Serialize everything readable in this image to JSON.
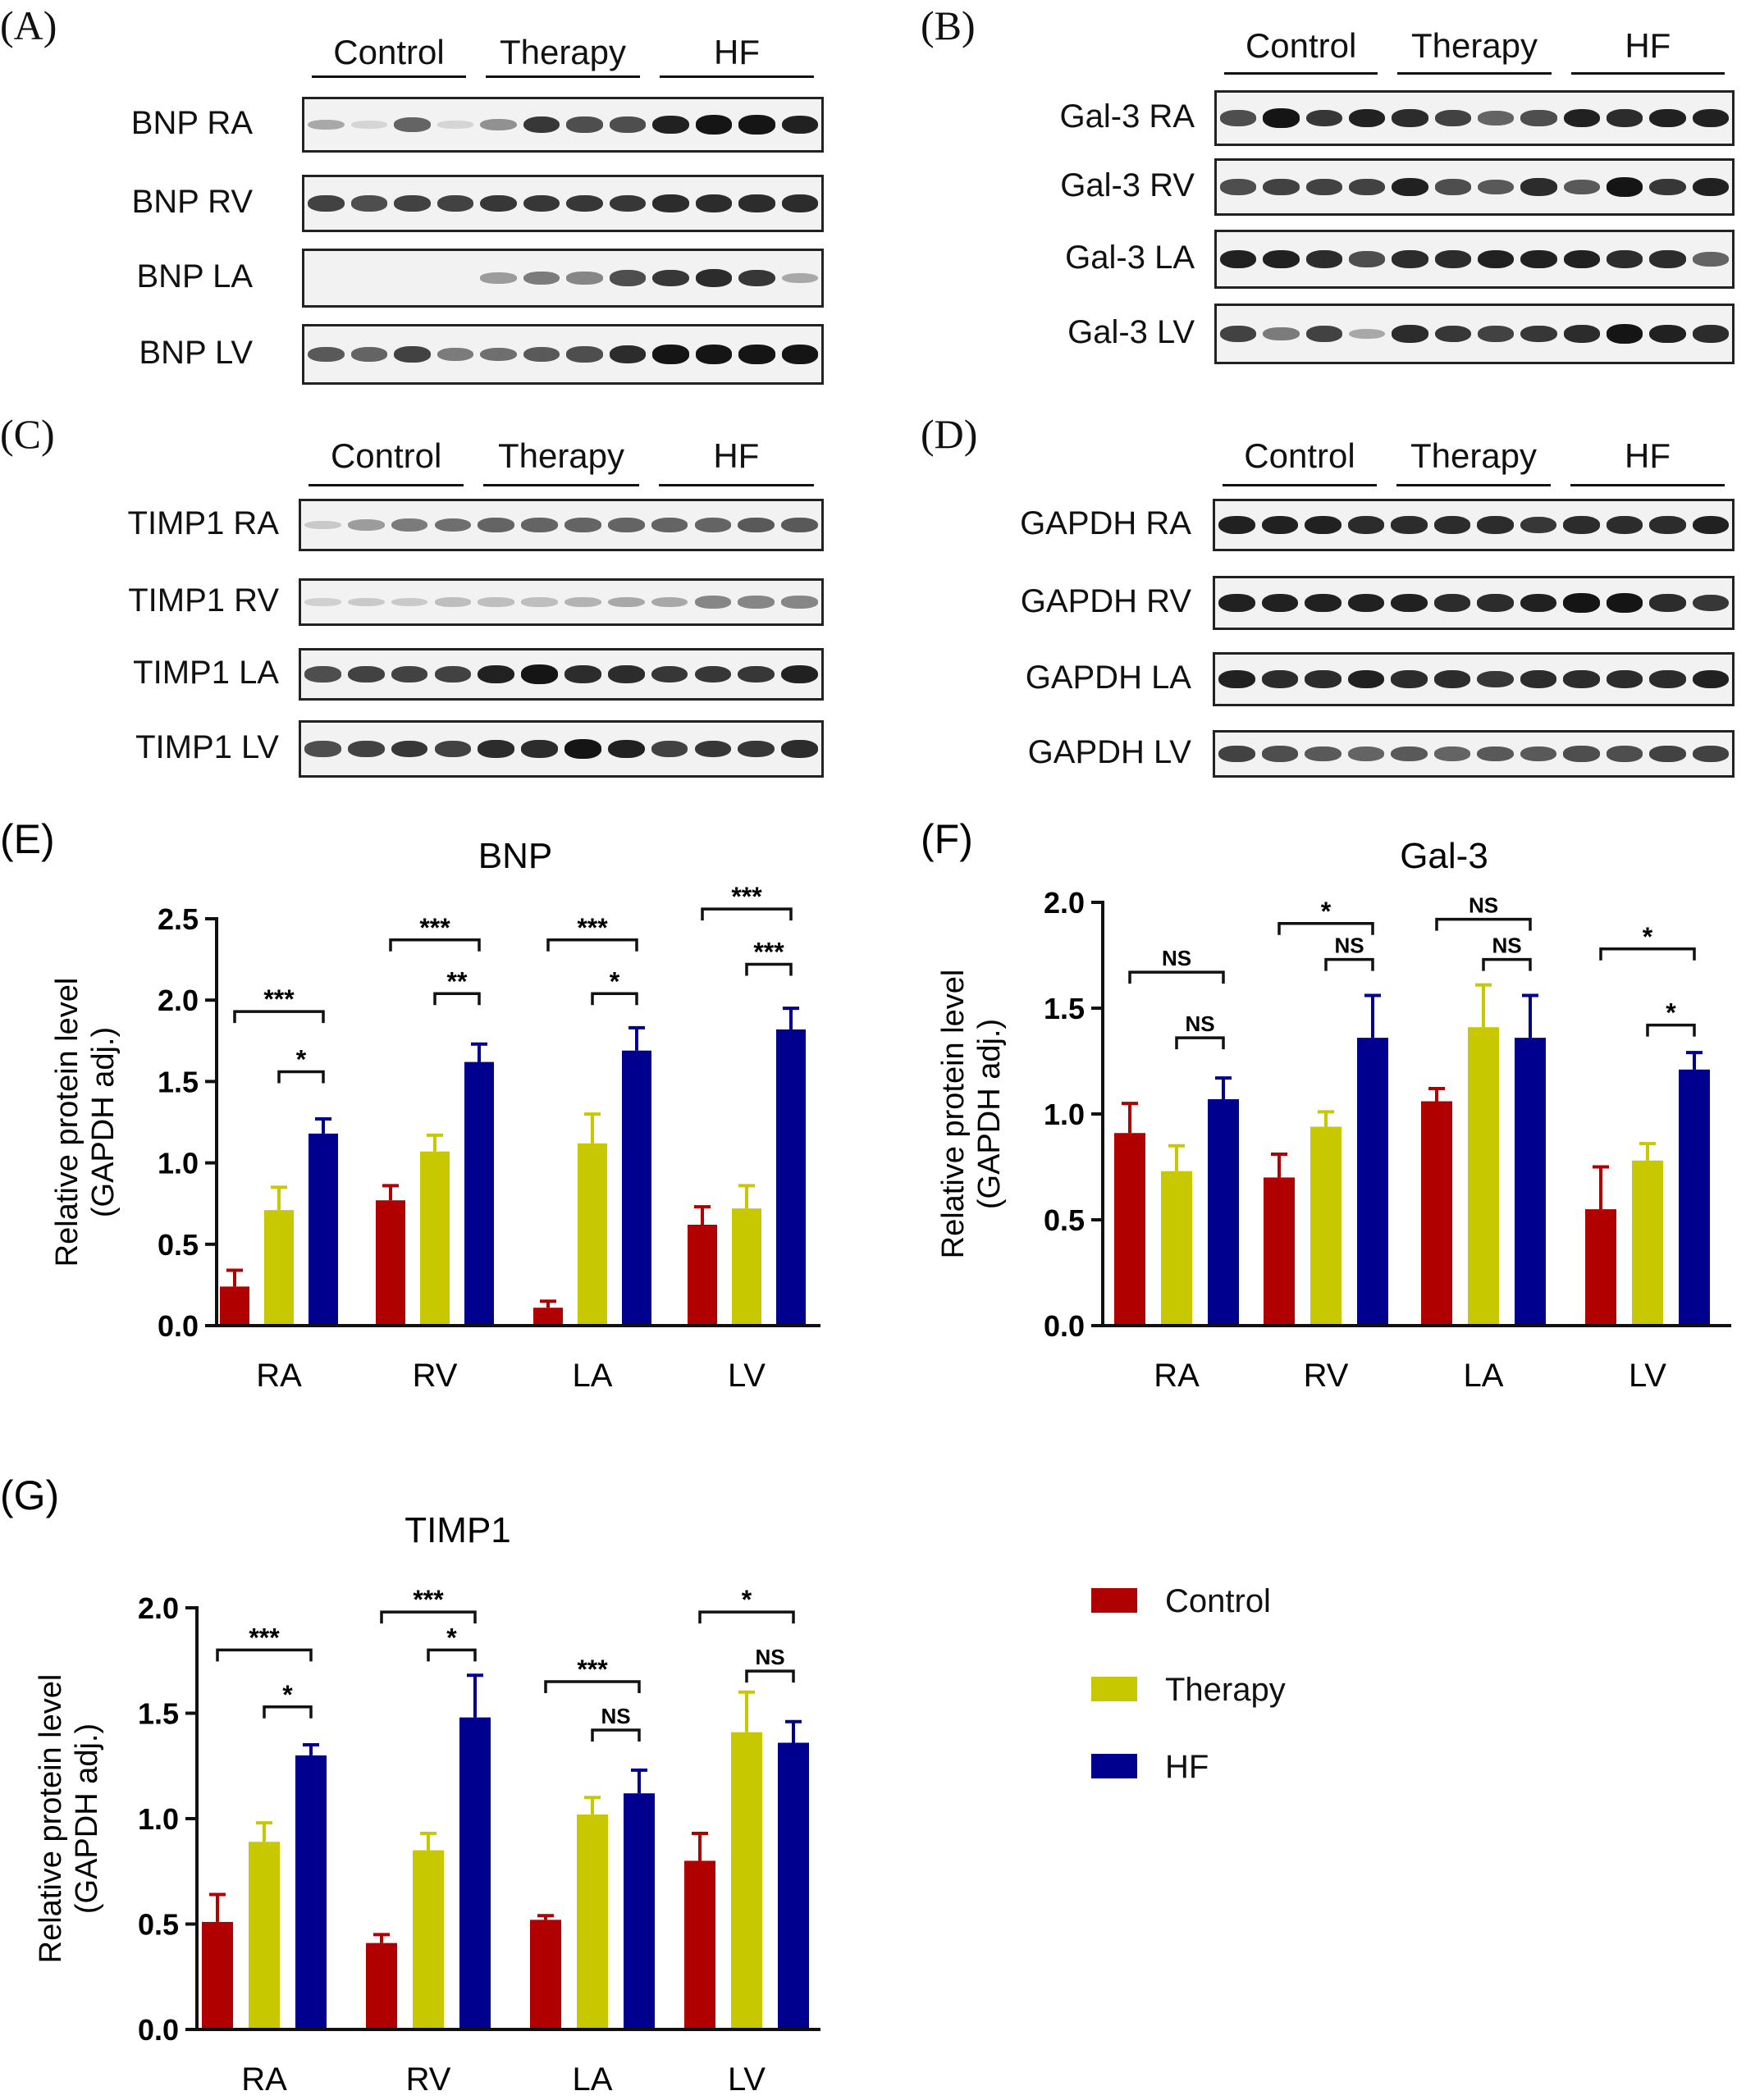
{
  "colors": {
    "control": "#b00000",
    "therapy": "#c8c800",
    "hf": "#00008f"
  },
  "groups": [
    "Control",
    "Therapy",
    "HF"
  ],
  "blots": [
    {
      "letter": "(A)",
      "rows": [
        {
          "label": "BNP RA",
          "intensity": [
            0.3,
            0.1,
            0.6,
            0.1,
            0.4,
            0.8,
            0.7,
            0.7,
            0.9,
            0.95,
            0.95,
            0.9
          ]
        },
        {
          "label": "BNP RV",
          "intensity": [
            0.75,
            0.7,
            0.75,
            0.75,
            0.8,
            0.8,
            0.8,
            0.8,
            0.85,
            0.85,
            0.85,
            0.85
          ]
        },
        {
          "label": "BNP LA",
          "intensity": [
            0,
            0,
            0,
            0,
            0.35,
            0.5,
            0.45,
            0.7,
            0.8,
            0.85,
            0.8,
            0.3
          ]
        },
        {
          "label": "BNP LV",
          "intensity": [
            0.65,
            0.6,
            0.75,
            0.5,
            0.55,
            0.65,
            0.7,
            0.85,
            0.95,
            0.95,
            0.95,
            0.95
          ]
        }
      ]
    },
    {
      "letter": "(B)",
      "rows": [
        {
          "label": "Gal-3 RA",
          "intensity": [
            0.7,
            0.95,
            0.8,
            0.9,
            0.85,
            0.75,
            0.6,
            0.7,
            0.9,
            0.85,
            0.9,
            0.9
          ]
        },
        {
          "label": "Gal-3 RV",
          "intensity": [
            0.7,
            0.75,
            0.75,
            0.75,
            0.9,
            0.7,
            0.65,
            0.85,
            0.65,
            0.95,
            0.8,
            0.9
          ]
        },
        {
          "label": "Gal-3 LA",
          "intensity": [
            0.9,
            0.9,
            0.85,
            0.7,
            0.85,
            0.85,
            0.9,
            0.9,
            0.9,
            0.85,
            0.85,
            0.6
          ]
        },
        {
          "label": "Gal-3 LV",
          "intensity": [
            0.75,
            0.5,
            0.75,
            0.3,
            0.85,
            0.8,
            0.75,
            0.8,
            0.85,
            0.95,
            0.9,
            0.85
          ]
        }
      ]
    },
    {
      "letter": "(C)",
      "rows": [
        {
          "label": "TIMP1 RA",
          "intensity": [
            0.15,
            0.35,
            0.5,
            0.55,
            0.6,
            0.6,
            0.6,
            0.6,
            0.6,
            0.6,
            0.65,
            0.65
          ]
        },
        {
          "label": "TIMP1 RV",
          "intensity": [
            0.12,
            0.15,
            0.15,
            0.2,
            0.2,
            0.2,
            0.25,
            0.3,
            0.3,
            0.45,
            0.45,
            0.45
          ]
        },
        {
          "label": "TIMP1 LA",
          "intensity": [
            0.7,
            0.75,
            0.75,
            0.75,
            0.9,
            0.95,
            0.85,
            0.85,
            0.8,
            0.8,
            0.8,
            0.9
          ]
        },
        {
          "label": "TIMP1 LV",
          "intensity": [
            0.7,
            0.75,
            0.8,
            0.75,
            0.85,
            0.85,
            0.95,
            0.9,
            0.75,
            0.8,
            0.8,
            0.85
          ]
        }
      ]
    },
    {
      "letter": "(D)",
      "rows": [
        {
          "label": "GAPDH RA",
          "intensity": [
            0.9,
            0.9,
            0.9,
            0.85,
            0.85,
            0.85,
            0.85,
            0.8,
            0.85,
            0.85,
            0.85,
            0.9
          ]
        },
        {
          "label": "GAPDH RV",
          "intensity": [
            0.9,
            0.9,
            0.9,
            0.9,
            0.9,
            0.85,
            0.85,
            0.9,
            0.95,
            0.95,
            0.85,
            0.8
          ]
        },
        {
          "label": "GAPDH LA",
          "intensity": [
            0.9,
            0.85,
            0.85,
            0.9,
            0.85,
            0.85,
            0.8,
            0.85,
            0.85,
            0.85,
            0.85,
            0.9
          ]
        },
        {
          "label": "GAPDH LV",
          "intensity": [
            0.75,
            0.7,
            0.65,
            0.6,
            0.65,
            0.6,
            0.65,
            0.65,
            0.7,
            0.7,
            0.75,
            0.75
          ]
        }
      ]
    }
  ],
  "legend": [
    "Control",
    "Therapy",
    "HF"
  ],
  "chart_data": [
    {
      "panel": "(E)",
      "type": "bar",
      "title": "BNP",
      "ylabel_line1": "Relative protein level",
      "ylabel_line2": "(GAPDH adj.)",
      "ylim": [
        0,
        2.5
      ],
      "yticks": [
        "0.0",
        "0.5",
        "1.0",
        "1.5",
        "2.0",
        "2.5"
      ],
      "categories": [
        "RA",
        "RV",
        "LA",
        "LV"
      ],
      "series": [
        {
          "name": "Control",
          "values": [
            0.24,
            0.77,
            0.11,
            0.62
          ],
          "errors": [
            0.1,
            0.09,
            0.04,
            0.11
          ]
        },
        {
          "name": "Therapy",
          "values": [
            0.71,
            1.07,
            1.12,
            0.72
          ],
          "errors": [
            0.14,
            0.1,
            0.18,
            0.14
          ]
        },
        {
          "name": "HF",
          "values": [
            1.18,
            1.62,
            1.69,
            1.82
          ],
          "errors": [
            0.09,
            0.11,
            0.14,
            0.13
          ]
        }
      ],
      "annotations": [
        {
          "cat": 0,
          "from": 0,
          "to": 2,
          "y": 1.93,
          "text": "***"
        },
        {
          "cat": 0,
          "from": 1,
          "to": 2,
          "y": 1.56,
          "text": "*"
        },
        {
          "cat": 1,
          "from": 0,
          "to": 2,
          "y": 2.37,
          "text": "***"
        },
        {
          "cat": 1,
          "from": 1,
          "to": 2,
          "y": 2.04,
          "text": "**"
        },
        {
          "cat": 2,
          "from": 0,
          "to": 2,
          "y": 2.37,
          "text": "***"
        },
        {
          "cat": 2,
          "from": 1,
          "to": 2,
          "y": 2.04,
          "text": "*"
        },
        {
          "cat": 3,
          "from": 0,
          "to": 2,
          "y": 2.56,
          "text": "***"
        },
        {
          "cat": 3,
          "from": 1,
          "to": 2,
          "y": 2.22,
          "text": "***"
        }
      ]
    },
    {
      "panel": "(F)",
      "type": "bar",
      "title": "Gal-3",
      "ylabel_line1": "Relative protein level",
      "ylabel_line2": "(GAPDH adj.)",
      "ylim": [
        0,
        2.0
      ],
      "yticks": [
        "0.0",
        "0.5",
        "1.0",
        "1.5",
        "2.0"
      ],
      "categories": [
        "RA",
        "RV",
        "LA",
        "LV"
      ],
      "series": [
        {
          "name": "Control",
          "values": [
            0.91,
            0.7,
            1.06,
            0.55
          ],
          "errors": [
            0.14,
            0.11,
            0.06,
            0.2
          ]
        },
        {
          "name": "Therapy",
          "values": [
            0.73,
            0.94,
            1.41,
            0.78
          ],
          "errors": [
            0.12,
            0.07,
            0.2,
            0.08
          ]
        },
        {
          "name": "HF",
          "values": [
            1.07,
            1.36,
            1.36,
            1.21
          ],
          "errors": [
            0.1,
            0.2,
            0.2,
            0.08
          ]
        }
      ],
      "annotations": [
        {
          "cat": 0,
          "from": 0,
          "to": 2,
          "y": 1.67,
          "text": "NS"
        },
        {
          "cat": 0,
          "from": 1,
          "to": 2,
          "y": 1.36,
          "text": "NS"
        },
        {
          "cat": 1,
          "from": 0,
          "to": 2,
          "y": 1.9,
          "text": "*"
        },
        {
          "cat": 1,
          "from": 1,
          "to": 2,
          "y": 1.73,
          "text": "NS"
        },
        {
          "cat": 2,
          "from": 0,
          "to": 2,
          "y": 1.92,
          "text": "NS"
        },
        {
          "cat": 2,
          "from": 1,
          "to": 2,
          "y": 1.73,
          "text": "NS"
        },
        {
          "cat": 3,
          "from": 0,
          "to": 2,
          "y": 1.78,
          "text": "*"
        },
        {
          "cat": 3,
          "from": 1,
          "to": 2,
          "y": 1.42,
          "text": "*"
        }
      ]
    },
    {
      "panel": "(G)",
      "type": "bar",
      "title": "TIMP1",
      "ylabel_line1": "Relative protein level",
      "ylabel_line2": "(GAPDH adj.)",
      "ylim": [
        0,
        2.0
      ],
      "yticks": [
        "0.0",
        "0.5",
        "1.0",
        "1.5",
        "2.0"
      ],
      "categories": [
        "RA",
        "RV",
        "LA",
        "LV"
      ],
      "series": [
        {
          "name": "Control",
          "values": [
            0.51,
            0.41,
            0.52,
            0.8
          ],
          "errors": [
            0.13,
            0.04,
            0.02,
            0.13
          ]
        },
        {
          "name": "Therapy",
          "values": [
            0.89,
            0.85,
            1.02,
            1.41
          ],
          "errors": [
            0.09,
            0.08,
            0.08,
            0.19
          ]
        },
        {
          "name": "HF",
          "values": [
            1.3,
            1.48,
            1.12,
            1.36
          ],
          "errors": [
            0.05,
            0.2,
            0.11,
            0.1
          ]
        }
      ],
      "annotations": [
        {
          "cat": 0,
          "from": 0,
          "to": 2,
          "y": 1.8,
          "text": "***"
        },
        {
          "cat": 0,
          "from": 1,
          "to": 2,
          "y": 1.53,
          "text": "*"
        },
        {
          "cat": 1,
          "from": 0,
          "to": 2,
          "y": 1.98,
          "text": "***"
        },
        {
          "cat": 1,
          "from": 1,
          "to": 2,
          "y": 1.8,
          "text": "*"
        },
        {
          "cat": 2,
          "from": 0,
          "to": 2,
          "y": 1.65,
          "text": "***"
        },
        {
          "cat": 2,
          "from": 1,
          "to": 2,
          "y": 1.42,
          "text": "NS"
        },
        {
          "cat": 3,
          "from": 0,
          "to": 2,
          "y": 1.98,
          "text": "*"
        },
        {
          "cat": 3,
          "from": 1,
          "to": 2,
          "y": 1.7,
          "text": "NS"
        }
      ]
    }
  ]
}
